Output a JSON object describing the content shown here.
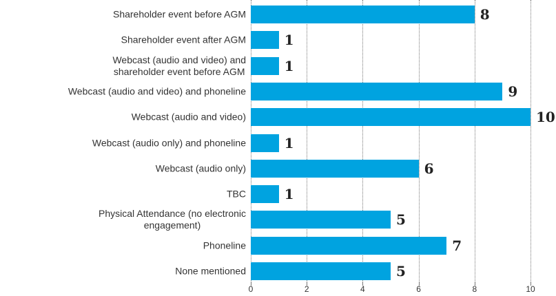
{
  "chart_data": {
    "type": "bar",
    "orientation": "horizontal",
    "categories": [
      "Shareholder event before AGM",
      "Shareholder event after AGM",
      "Webcast (audio and video) and\nshareholder event before AGM",
      "Webcast (audio and video) and phoneline",
      "Webcast (audio and video)",
      "Webcast (audio only) and phoneline",
      "Webcast (audio only)",
      "TBC",
      "Physical Attendance (no electronic\nengagement)",
      "Phoneline",
      "None mentioned"
    ],
    "values": [
      8,
      1,
      1,
      9,
      10,
      1,
      6,
      1,
      5,
      7,
      5
    ],
    "color": "#00a3e0",
    "xlim": [
      0,
      10
    ],
    "xticks": [
      0,
      2,
      4,
      6,
      8,
      10
    ],
    "grid": true
  }
}
